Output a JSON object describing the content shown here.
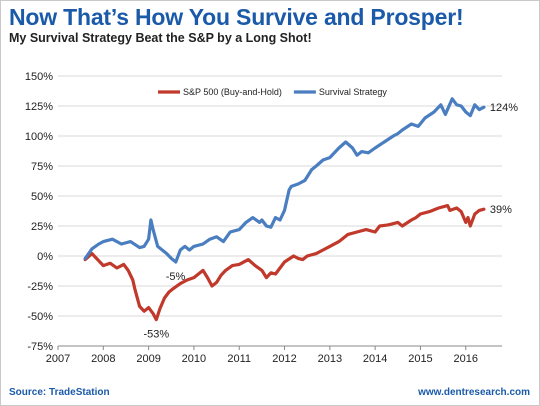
{
  "header": {
    "title": "Now That’s How You Survive and Prosper!",
    "subtitle": "My Survival Strategy Beat the S&P by a Long Shot!"
  },
  "footer": {
    "source": "Source: TradeStation",
    "website": "www.dentresearch.com"
  },
  "chart_data": {
    "type": "line",
    "xlim": [
      2007,
      2016.8
    ],
    "ylim": [
      -75,
      150
    ],
    "x_ticks": [
      "2007",
      "2008",
      "2009",
      "2010",
      "2011",
      "2012",
      "2013",
      "2014",
      "2015",
      "2016"
    ],
    "y_ticks": [
      "-75%",
      "-50%",
      "-25%",
      "0%",
      "25%",
      "50%",
      "75%",
      "100%",
      "125%",
      "150%"
    ],
    "y_tick_values": [
      -75,
      -50,
      -25,
      0,
      25,
      50,
      75,
      100,
      125,
      150
    ],
    "grid": "horizontal",
    "legend_position": "top-center",
    "series": [
      {
        "name": "S&P 500 (Buy-and-Hold)",
        "color": "#c0392b",
        "end_label": "39%",
        "x": [
          2007.6,
          2007.75,
          2007.9,
          2008.0,
          2008.15,
          2008.3,
          2008.45,
          2008.55,
          2008.65,
          2008.7,
          2008.8,
          2008.9,
          2009.0,
          2009.1,
          2009.17,
          2009.25,
          2009.35,
          2009.45,
          2009.55,
          2009.7,
          2009.85,
          2010.0,
          2010.2,
          2010.3,
          2010.4,
          2010.5,
          2010.6,
          2010.7,
          2010.85,
          2011.0,
          2011.2,
          2011.35,
          2011.5,
          2011.6,
          2011.7,
          2011.8,
          2011.9,
          2012.0,
          2012.2,
          2012.3,
          2012.4,
          2012.5,
          2012.7,
          2012.85,
          2013.0,
          2013.2,
          2013.4,
          2013.6,
          2013.8,
          2014.0,
          2014.1,
          2014.3,
          2014.5,
          2014.6,
          2014.8,
          2014.9,
          2015.0,
          2015.2,
          2015.4,
          2015.6,
          2015.65,
          2015.8,
          2015.9,
          2016.0,
          2016.05,
          2016.1,
          2016.2,
          2016.3,
          2016.4
        ],
        "values": [
          -3,
          2,
          -4,
          -8,
          -6,
          -10,
          -7,
          -12,
          -20,
          -28,
          -42,
          -46,
          -43,
          -48,
          -53,
          -44,
          -35,
          -30,
          -27,
          -23,
          -20,
          -18,
          -12,
          -18,
          -25,
          -22,
          -16,
          -12,
          -8,
          -7,
          -3,
          -8,
          -12,
          -18,
          -14,
          -15,
          -10,
          -5,
          0,
          -2,
          -3,
          0,
          2,
          5,
          8,
          12,
          18,
          20,
          22,
          20,
          25,
          26,
          28,
          25,
          30,
          32,
          35,
          37,
          40,
          42,
          38,
          40,
          37,
          28,
          32,
          25,
          35,
          38,
          39
        ]
      },
      {
        "name": "Survival Strategy",
        "color": "#4a7ec0",
        "end_label": "124%",
        "x": [
          2007.6,
          2007.75,
          2007.9,
          2008.0,
          2008.2,
          2008.4,
          2008.6,
          2008.8,
          2008.9,
          2009.0,
          2009.05,
          2009.1,
          2009.2,
          2009.3,
          2009.4,
          2009.5,
          2009.6,
          2009.7,
          2009.8,
          2009.9,
          2010.0,
          2010.2,
          2010.35,
          2010.5,
          2010.65,
          2010.8,
          2011.0,
          2011.15,
          2011.3,
          2011.45,
          2011.5,
          2011.6,
          2011.7,
          2011.8,
          2011.9,
          2012.0,
          2012.1,
          2012.15,
          2012.3,
          2012.45,
          2012.6,
          2012.7,
          2012.85,
          2013.0,
          2013.2,
          2013.35,
          2013.5,
          2013.6,
          2013.7,
          2013.85,
          2014.0,
          2014.2,
          2014.4,
          2014.5,
          2014.6,
          2014.8,
          2014.95,
          2015.1,
          2015.3,
          2015.45,
          2015.55,
          2015.7,
          2015.8,
          2015.9,
          2016.0,
          2016.1,
          2016.2,
          2016.3,
          2016.4
        ],
        "values": [
          -2,
          6,
          10,
          12,
          14,
          10,
          12,
          7,
          8,
          14,
          30,
          22,
          8,
          5,
          2,
          -2,
          -5,
          5,
          8,
          5,
          8,
          10,
          14,
          16,
          12,
          20,
          22,
          28,
          32,
          28,
          30,
          25,
          24,
          32,
          30,
          38,
          55,
          58,
          60,
          63,
          72,
          75,
          80,
          82,
          90,
          95,
          90,
          84,
          87,
          86,
          90,
          95,
          100,
          102,
          105,
          110,
          108,
          115,
          120,
          126,
          118,
          131,
          126,
          125,
          120,
          117,
          126,
          122,
          124
        ]
      }
    ],
    "annotations": [
      {
        "x": 2009.17,
        "y": -53,
        "text": "-53%"
      },
      {
        "x": 2009.55,
        "y": -5,
        "text": "-5%"
      }
    ]
  }
}
